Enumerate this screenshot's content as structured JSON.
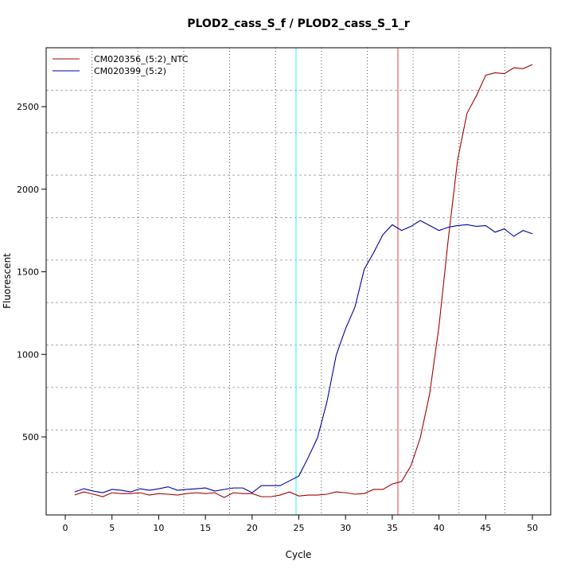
{
  "chart_data": {
    "type": "line",
    "title": "PLOD2_cass_S_f / PLOD2_cass_S_1_r",
    "xlabel": "Cycle",
    "ylabel": "Fluorescent",
    "xlim": [
      -2,
      52
    ],
    "ylim": [
      100,
      2880
    ],
    "xticks": [
      0,
      5,
      10,
      15,
      20,
      25,
      30,
      35,
      40,
      45,
      50
    ],
    "yticks": [
      500,
      1000,
      1500,
      2000,
      2500
    ],
    "grid": true,
    "legend_position": "top-left",
    "x": [
      1,
      2,
      3,
      4,
      5,
      6,
      7,
      8,
      9,
      10,
      11,
      12,
      13,
      14,
      15,
      16,
      17,
      18,
      19,
      20,
      21,
      22,
      23,
      24,
      25,
      26,
      27,
      28,
      29,
      30,
      31,
      32,
      33,
      34,
      35,
      36,
      37,
      38,
      39,
      40,
      41,
      42,
      43,
      44,
      45,
      46,
      47,
      48,
      49,
      50
    ],
    "series": [
      {
        "name": "CM020356_(5:2)_NTC",
        "color": "#a00000",
        "values": [
          148,
          167,
          153,
          138,
          162,
          157,
          157,
          162,
          148,
          157,
          153,
          148,
          157,
          162,
          157,
          162,
          133,
          162,
          157,
          157,
          138,
          138,
          148,
          167,
          142,
          148,
          148,
          153,
          167,
          162,
          153,
          157,
          182,
          182,
          215,
          230,
          326,
          495,
          760,
          1170,
          1700,
          2180,
          2460,
          2565,
          2690,
          2705,
          2700,
          2735,
          2730,
          2755
        ]
      },
      {
        "name": "CM020399_(5:2)",
        "color": "#0000a0",
        "values": [
          167,
          186,
          172,
          162,
          182,
          177,
          167,
          186,
          177,
          186,
          198,
          177,
          182,
          186,
          191,
          172,
          182,
          191,
          191,
          162,
          205,
          205,
          205,
          234,
          263,
          375,
          495,
          710,
          995,
          1155,
          1285,
          1515,
          1615,
          1725,
          1785,
          1750,
          1775,
          1810,
          1780,
          1750,
          1770,
          1780,
          1785,
          1775,
          1780,
          1740,
          1760,
          1715,
          1750,
          1730
        ]
      }
    ],
    "vlines": [
      {
        "x": 24.7,
        "color": "#66ffff"
      },
      {
        "x": 35.6,
        "color": "#f08080"
      }
    ]
  }
}
